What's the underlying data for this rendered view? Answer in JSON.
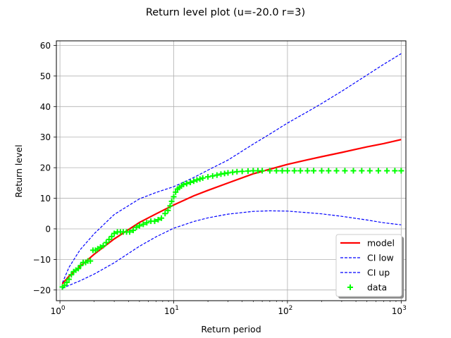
{
  "chart_data": {
    "type": "line",
    "title": "Return level plot (u=-20.0 r=3)",
    "xlabel": "Return period",
    "ylabel": "Return level",
    "xscale": "log",
    "xlim": [
      0.93,
      1100
    ],
    "ylim": [
      -23.5,
      61.5
    ],
    "grid": true,
    "legend_position": "bottom-right",
    "x_ticks": [
      {
        "value": 1,
        "base": "10",
        "exp": "0"
      },
      {
        "value": 10,
        "base": "10",
        "exp": "1"
      },
      {
        "value": 100,
        "base": "10",
        "exp": "2"
      },
      {
        "value": 1000,
        "base": "10",
        "exp": "3"
      }
    ],
    "y_ticks": [
      {
        "value": -20,
        "label": "−20"
      },
      {
        "value": -10,
        "label": "−10"
      },
      {
        "value": 0,
        "label": "0"
      },
      {
        "value": 10,
        "label": "10"
      },
      {
        "value": 20,
        "label": "20"
      },
      {
        "value": 30,
        "label": "30"
      },
      {
        "value": 40,
        "label": "40"
      },
      {
        "value": 50,
        "label": "50"
      },
      {
        "value": 60,
        "label": "60"
      }
    ],
    "series": [
      {
        "name": "model",
        "kind": "line",
        "color": "#ff0000",
        "dash": "solid",
        "x": [
          1.05,
          1.2,
          1.5,
          2,
          3,
          5,
          7,
          10,
          15,
          20,
          30,
          50,
          70,
          100,
          150,
          200,
          300,
          500,
          700,
          1000
        ],
        "y": [
          -18,
          -15.5,
          -12.3,
          -8.3,
          -3.3,
          2.1,
          4.9,
          7.8,
          10.8,
          12.6,
          15.0,
          18.0,
          19.5,
          21.1,
          22.6,
          23.6,
          25.0,
          26.8,
          27.9,
          29.2
        ]
      },
      {
        "name": "CI low",
        "kind": "line",
        "color": "#0000ff",
        "dash": "dashed",
        "x": [
          1.05,
          1.2,
          1.5,
          2,
          3,
          5,
          7,
          10,
          15,
          20,
          30,
          50,
          70,
          100,
          150,
          200,
          300,
          500,
          700,
          1000
        ],
        "y": [
          -19.5,
          -18.5,
          -17.0,
          -14.8,
          -11.1,
          -5.7,
          -2.6,
          0.2,
          2.4,
          3.6,
          4.8,
          5.7,
          5.9,
          5.8,
          5.3,
          4.9,
          4.1,
          2.9,
          2.0,
          1.3
        ]
      },
      {
        "name": "CI up",
        "kind": "line",
        "color": "#0000ff",
        "dash": "dashed",
        "x": [
          1.05,
          1.2,
          1.5,
          2,
          3,
          5,
          7,
          10,
          15,
          20,
          30,
          50,
          70,
          100,
          150,
          200,
          300,
          500,
          700,
          1000
        ],
        "y": [
          -17.7,
          -12.6,
          -6.9,
          -1.6,
          4.7,
          9.8,
          11.9,
          13.8,
          16.8,
          19.2,
          22.5,
          27.7,
          31.0,
          34.6,
          38.3,
          41.0,
          45.0,
          50.3,
          53.8,
          57.3
        ]
      },
      {
        "name": "data",
        "kind": "scatter",
        "marker": "+",
        "color": "#00ff00",
        "x": [
          1.05,
          1.1,
          1.15,
          1.2,
          1.26,
          1.32,
          1.38,
          1.45,
          1.52,
          1.6,
          1.68,
          1.76,
          1.85,
          1.95,
          2.05,
          2.15,
          2.27,
          2.4,
          2.55,
          2.7,
          2.85,
          3.0,
          3.2,
          3.4,
          3.6,
          3.85,
          4.1,
          4.4,
          4.7,
          5.0,
          5.4,
          5.8,
          6.3,
          6.8,
          7.3,
          7.8,
          8.4,
          8.9,
          9.3,
          9.6,
          10.0,
          10.4,
          10.8,
          11.2,
          11.7,
          12.2,
          13,
          14,
          15,
          16,
          17,
          18,
          20,
          22,
          24,
          26,
          28,
          30,
          33,
          36,
          40,
          45,
          50,
          55,
          60,
          70,
          80,
          90,
          100,
          115,
          130,
          150,
          170,
          200,
          230,
          270,
          320,
          380,
          450,
          530,
          630,
          750,
          880,
          1000
        ],
        "y": [
          -19,
          -18.5,
          -17.5,
          -16.5,
          -15,
          -14,
          -13.5,
          -13,
          -12,
          -11,
          -11,
          -10.5,
          -10.5,
          -7,
          -7,
          -6.5,
          -6,
          -5.5,
          -4.5,
          -3.5,
          -2.5,
          -1.5,
          -1,
          -1,
          -1,
          -1,
          -1,
          -0.5,
          0.5,
          1,
          1.5,
          2,
          2.5,
          2.5,
          3,
          3.5,
          5,
          6,
          7.5,
          9,
          10.5,
          12,
          13,
          13.5,
          14,
          14.5,
          14.8,
          15.2,
          15.6,
          16,
          16.3,
          16.6,
          17,
          17.3,
          17.6,
          17.9,
          18.1,
          18.3,
          18.5,
          18.7,
          18.8,
          18.9,
          19,
          19,
          19,
          19,
          19,
          19,
          19,
          19,
          19,
          19,
          19,
          19,
          19,
          19,
          19,
          19,
          19,
          19,
          19,
          19,
          19,
          19
        ]
      }
    ]
  }
}
